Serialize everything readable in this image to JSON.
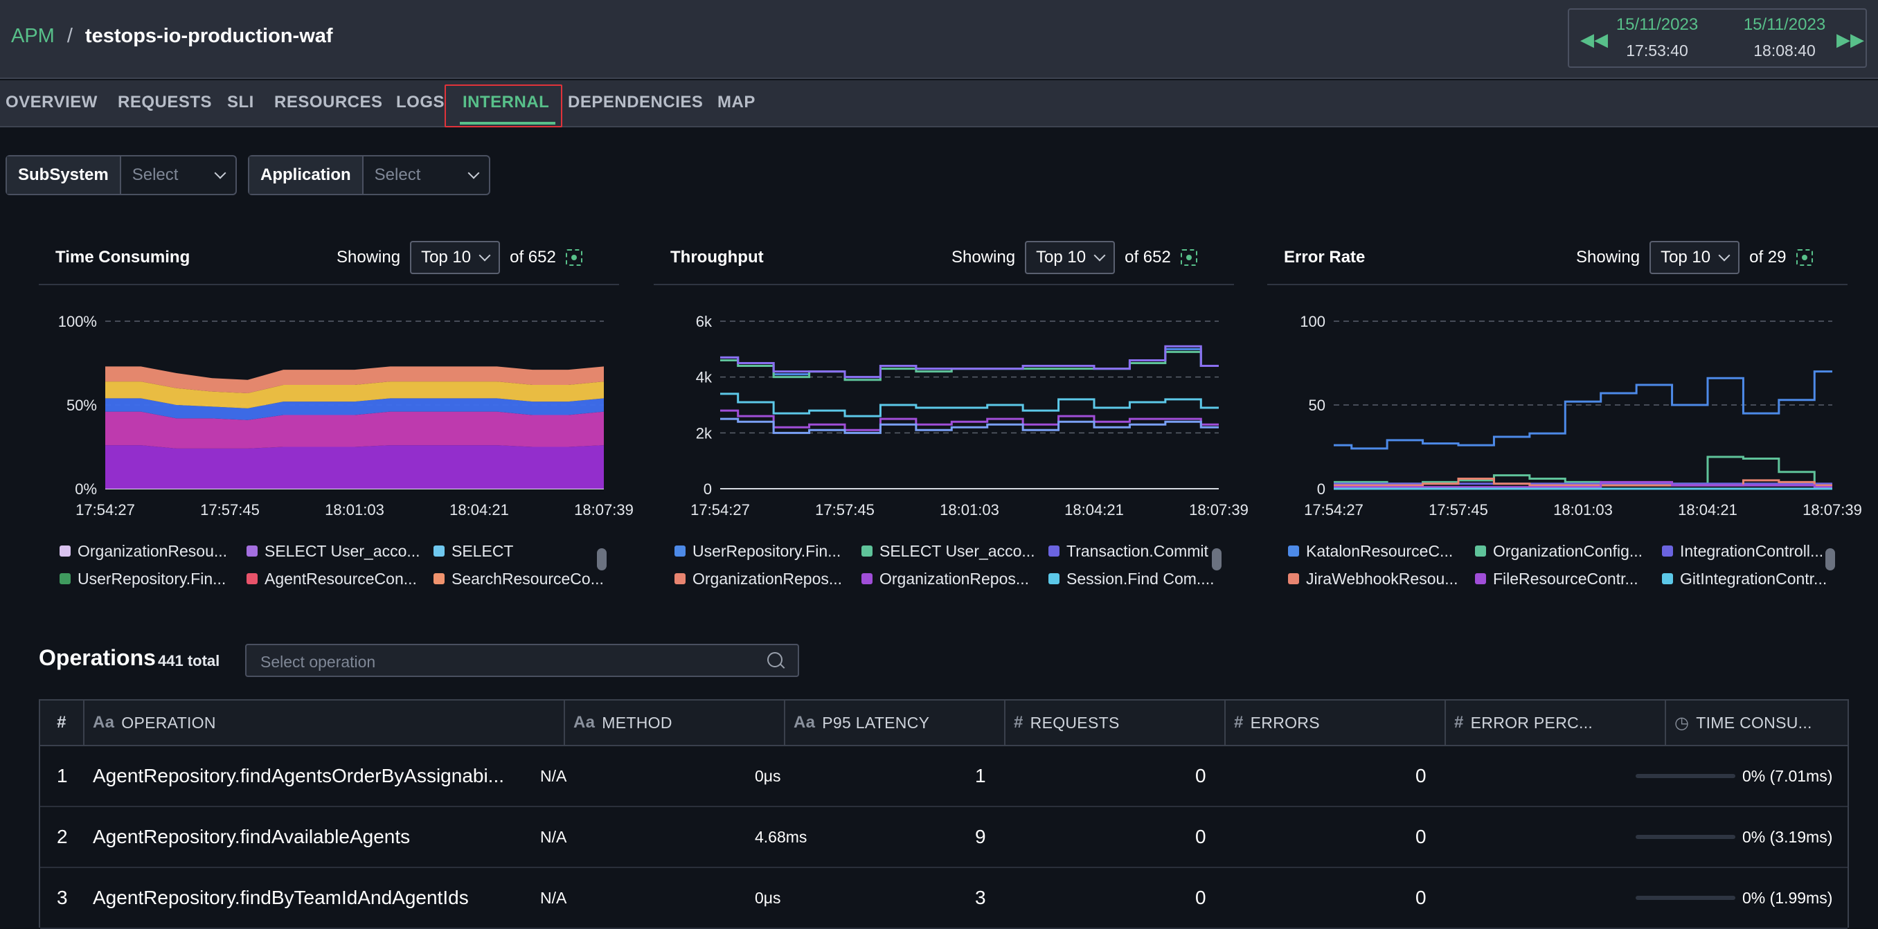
{
  "breadcrumb": {
    "root": "APM",
    "separator": "/",
    "current": "testops-io-production-waf"
  },
  "time_range": {
    "start_date": "15/11/2023",
    "start_time": "17:53:40",
    "end_date": "15/11/2023",
    "end_time": "18:08:40"
  },
  "tabs": [
    {
      "label": "OVERVIEW"
    },
    {
      "label": "REQUESTS"
    },
    {
      "label": "SLI"
    },
    {
      "label": "RESOURCES"
    },
    {
      "label": "LOGS"
    },
    {
      "label": "INTERNAL",
      "active": true
    },
    {
      "label": "DEPENDENCIES"
    },
    {
      "label": "MAP"
    }
  ],
  "filters": [
    {
      "label": "SubSystem",
      "placeholder": "Select"
    },
    {
      "label": "Application",
      "placeholder": "Select"
    }
  ],
  "panels": [
    {
      "title": "Time Consuming",
      "showing": "Showing",
      "top": "Top 10",
      "of": "of 652",
      "y_ticks": [
        "100%",
        "50%",
        "0%"
      ],
      "x_ticks": [
        "17:54:27",
        "17:57:45",
        "18:01:03",
        "18:04:21",
        "18:07:39"
      ],
      "legend": [
        {
          "label": "OrganizationResou...",
          "color": "#d9c2ef"
        },
        {
          "label": "SELECT User_acco...",
          "color": "#a46fe0"
        },
        {
          "label": "SELECT",
          "color": "#6fc8ef"
        },
        {
          "label": "UserRepository.Fin...",
          "color": "#3f9a5e"
        },
        {
          "label": "AgentResourceCon...",
          "color": "#e8536a"
        },
        {
          "label": "SearchResourceCo...",
          "color": "#f0936e"
        }
      ]
    },
    {
      "title": "Throughput",
      "showing": "Showing",
      "top": "Top 10",
      "of": "of 652",
      "y_ticks": [
        "6k",
        "4k",
        "2k",
        "0"
      ],
      "x_ticks": [
        "17:54:27",
        "17:57:45",
        "18:01:03",
        "18:04:21",
        "18:07:39"
      ],
      "legend": [
        {
          "label": "UserRepository.Fin...",
          "color": "#4d8ae8"
        },
        {
          "label": "SELECT User_acco...",
          "color": "#5fc39a"
        },
        {
          "label": "Transaction.Commit",
          "color": "#6b64e0"
        },
        {
          "label": "OrganizationRepos...",
          "color": "#e88470"
        },
        {
          "label": "OrganizationRepos...",
          "color": "#a04ed8"
        },
        {
          "label": "Session.Find Com....",
          "color": "#5cc8e8"
        }
      ]
    },
    {
      "title": "Error Rate",
      "showing": "Showing",
      "top": "Top 10",
      "of": "of 29",
      "y_ticks": [
        "100",
        "50",
        "0"
      ],
      "x_ticks": [
        "17:54:27",
        "17:57:45",
        "18:01:03",
        "18:04:21",
        "18:07:39"
      ],
      "legend": [
        {
          "label": "KatalonResourceC...",
          "color": "#4d8ae8"
        },
        {
          "label": "OrganizationConfig...",
          "color": "#5fc39a"
        },
        {
          "label": "IntegrationControll...",
          "color": "#6b64e0"
        },
        {
          "label": "JiraWebhookResou...",
          "color": "#e88470"
        },
        {
          "label": "FileResourceContr...",
          "color": "#a04ed8"
        },
        {
          "label": "GitIntegrationContr...",
          "color": "#5cc8e8"
        }
      ]
    }
  ],
  "operations": {
    "title": "Operations",
    "total": "441 total",
    "search_placeholder": "Select operation",
    "columns": [
      "#",
      "OPERATION",
      "METHOD",
      "P95 LATENCY",
      "REQUESTS",
      "ERRORS",
      "ERROR PERC...",
      "TIME CONSU..."
    ],
    "rows": [
      {
        "n": "1",
        "op": "AgentRepository.findAgentsOrderByAssignabi...",
        "method": "N/A",
        "latency": "0μs",
        "requests": "1",
        "errors": "0",
        "perc": "0",
        "time": "0% (7.01ms)",
        "time_fraction": 0
      },
      {
        "n": "2",
        "op": "AgentRepository.findAvailableAgents",
        "method": "N/A",
        "latency": "4.68ms",
        "requests": "9",
        "errors": "0",
        "perc": "0",
        "time": "0% (3.19ms)",
        "time_fraction": 0
      },
      {
        "n": "3",
        "op": "AgentRepository.findByTeamIdAndAgentIds",
        "method": "N/A",
        "latency": "0μs",
        "requests": "3",
        "errors": "0",
        "perc": "0",
        "time": "0% (1.99ms)",
        "time_fraction": 0
      }
    ]
  },
  "chart_data": [
    {
      "type": "area",
      "title": "Time Consuming",
      "x": [
        "17:54",
        "17:55",
        "17:56",
        "17:57",
        "17:58",
        "17:59",
        "18:00",
        "18:01",
        "18:02",
        "18:03",
        "18:04",
        "18:05",
        "18:06",
        "18:07",
        "18:08"
      ],
      "ylim": [
        0,
        100
      ],
      "series": [
        {
          "name": "SELECT User_acco...",
          "values": [
            26,
            26,
            24,
            24,
            24,
            25,
            25,
            25,
            26,
            26,
            26,
            26,
            25,
            25,
            26
          ]
        },
        {
          "name": "AgentResourceCon...",
          "values": [
            20,
            20,
            18,
            18,
            17,
            19,
            19,
            19,
            20,
            20,
            20,
            20,
            19,
            19,
            20
          ]
        },
        {
          "name": "UserRepository.Fin...",
          "values": [
            8,
            8,
            8,
            7,
            7,
            8,
            8,
            8,
            8,
            8,
            8,
            8,
            8,
            8,
            8
          ]
        },
        {
          "name": "SearchResourceCo...",
          "values": [
            10,
            10,
            10,
            9,
            9,
            10,
            10,
            10,
            10,
            10,
            10,
            10,
            10,
            10,
            10
          ]
        },
        {
          "name": "OrganizationResou...",
          "values": [
            9,
            9,
            9,
            8,
            8,
            9,
            9,
            9,
            9,
            9,
            9,
            9,
            9,
            9,
            9
          ]
        }
      ]
    },
    {
      "type": "line",
      "title": "Throughput",
      "x": [
        "17:54",
        "17:55",
        "17:56",
        "17:57",
        "17:58",
        "17:59",
        "18:00",
        "18:01",
        "18:02",
        "18:03",
        "18:04",
        "18:05",
        "18:06",
        "18:07",
        "18:08"
      ],
      "ylim": [
        0,
        6000
      ],
      "series": [
        {
          "name": "UserRepository.Fin...",
          "values": [
            4700,
            4500,
            4100,
            4200,
            4000,
            4400,
            4300,
            4300,
            4300,
            4400,
            4400,
            4300,
            4600,
            5000,
            4400
          ]
        },
        {
          "name": "SELECT User_acco...",
          "values": [
            4600,
            4400,
            4000,
            4200,
            3900,
            4300,
            4200,
            4300,
            4300,
            4300,
            4300,
            4300,
            4500,
            4900,
            4400
          ]
        },
        {
          "name": "Transaction.Commit",
          "values": [
            4700,
            4500,
            4200,
            4200,
            4000,
            4400,
            4300,
            4300,
            4300,
            4400,
            4400,
            4300,
            4600,
            5100,
            4400
          ]
        },
        {
          "name": "Session.Find Com....",
          "values": [
            3400,
            3100,
            2700,
            2800,
            2600,
            3000,
            2900,
            2900,
            3000,
            2800,
            3200,
            2900,
            3100,
            3200,
            2900
          ]
        },
        {
          "name": "OrganizationRepos...",
          "values": [
            2800,
            2600,
            2200,
            2300,
            2100,
            2500,
            2300,
            2400,
            2500,
            2300,
            2600,
            2400,
            2500,
            2500,
            2300
          ]
        },
        {
          "name": "OrganizationRepos...",
          "values": [
            2500,
            2400,
            2000,
            2100,
            2000,
            2300,
            2100,
            2200,
            2300,
            2100,
            2400,
            2200,
            2300,
            2400,
            2200
          ]
        }
      ]
    },
    {
      "type": "line",
      "title": "Error Rate",
      "x": [
        "17:54",
        "17:55",
        "17:56",
        "17:57",
        "17:58",
        "17:59",
        "18:00",
        "18:01",
        "18:02",
        "18:03",
        "18:04",
        "18:05",
        "18:06",
        "18:07",
        "18:08"
      ],
      "ylim": [
        0,
        100
      ],
      "series": [
        {
          "name": "KatalonResourceC...",
          "values": [
            26,
            24,
            29,
            27,
            26,
            31,
            33,
            52,
            57,
            62,
            50,
            66,
            45,
            53,
            70
          ]
        },
        {
          "name": "OrganizationConfig...",
          "values": [
            4,
            4,
            3,
            4,
            5,
            8,
            6,
            4,
            3,
            3,
            3,
            19,
            18,
            10,
            2
          ]
        },
        {
          "name": "IntegrationControll...",
          "values": [
            3,
            3,
            3,
            3,
            3,
            3,
            3,
            3,
            3,
            3,
            3,
            3,
            3,
            3,
            3
          ]
        },
        {
          "name": "JiraWebhookResou...",
          "values": [
            2,
            2,
            2,
            3,
            6,
            3,
            2,
            2,
            2,
            2,
            2,
            2,
            5,
            4,
            2
          ]
        },
        {
          "name": "FileResourceContr...",
          "values": [
            1,
            1,
            1,
            1,
            1,
            1,
            1,
            1,
            4,
            4,
            2,
            2,
            2,
            2,
            1
          ]
        },
        {
          "name": "GitIntegrationContr...",
          "values": [
            0,
            0,
            0,
            0,
            0,
            0,
            0,
            0,
            0,
            0,
            0,
            0,
            0,
            0,
            0
          ]
        }
      ]
    }
  ]
}
